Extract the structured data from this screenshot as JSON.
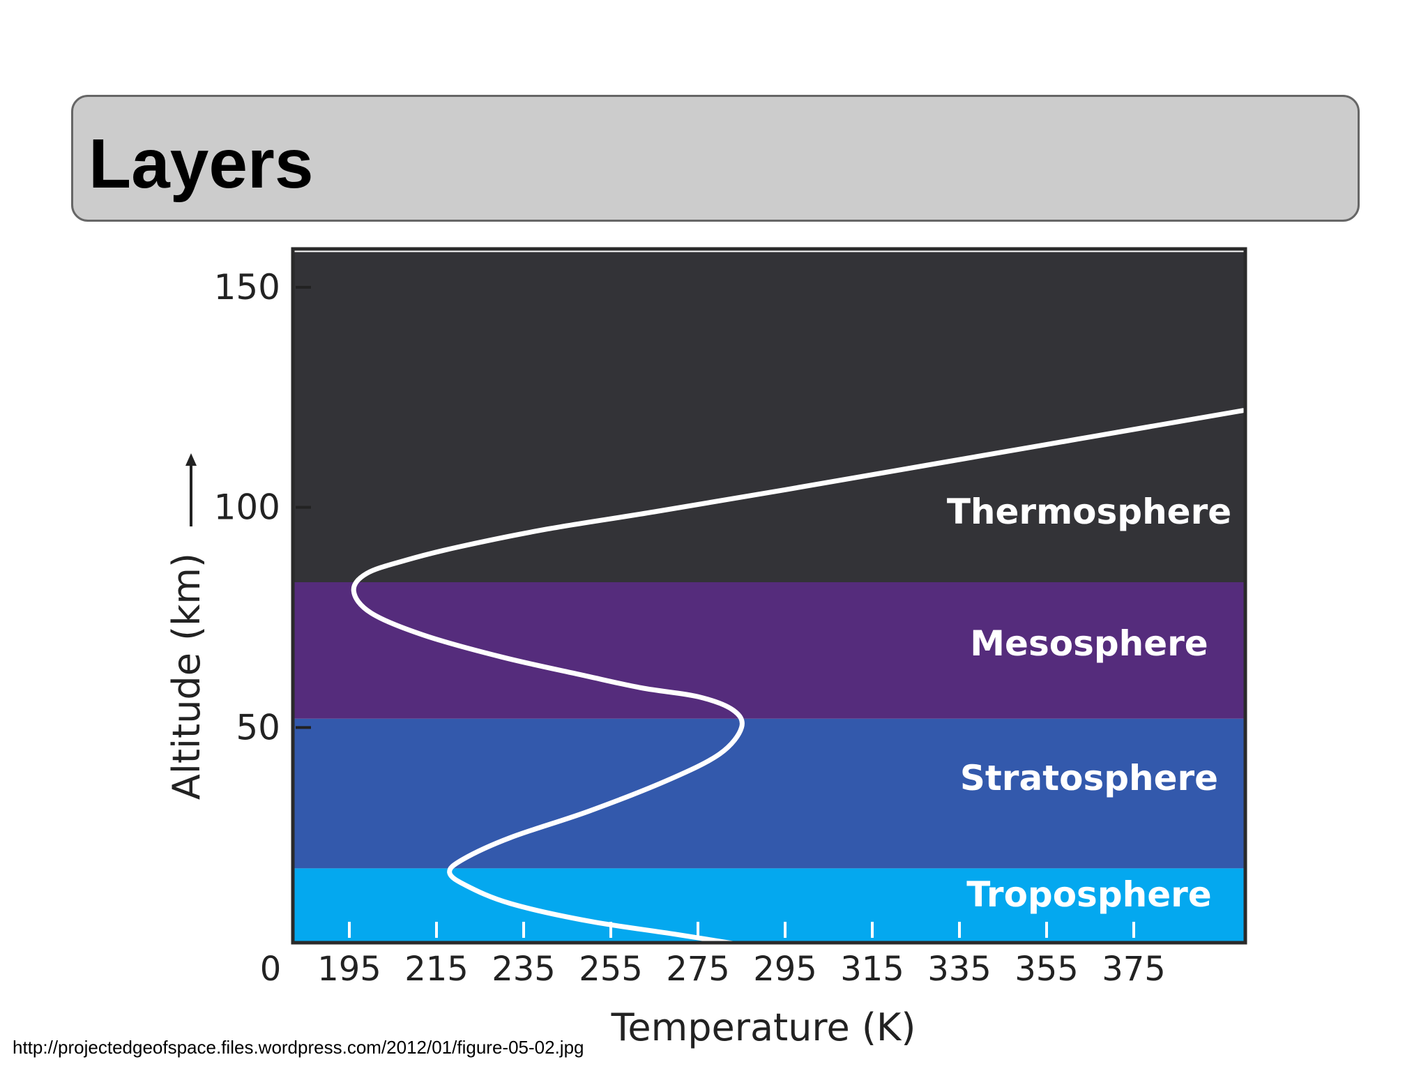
{
  "slide": {
    "title": "Layers",
    "source_caption": "http://projectedgeofspace.files.wordpress.com/2012/01/figure-05-02.jpg"
  },
  "chart_data": {
    "type": "line",
    "xlabel": "Temperature (K)",
    "ylabel": "Altitude (km)",
    "x_ticks": [
      195,
      215,
      235,
      255,
      275,
      295,
      315,
      335,
      355,
      375
    ],
    "x_origin_label": "0",
    "y_ticks": [
      50,
      100,
      150
    ],
    "ylim": [
      0,
      158
    ],
    "xlim": [
      182,
      400
    ],
    "grid": false,
    "layers": [
      {
        "name": "Troposphere",
        "bottom": 0,
        "top": 18,
        "color": "#04a8ef"
      },
      {
        "name": "Stratosphere",
        "bottom": 18,
        "top": 52,
        "color": "#3359ac"
      },
      {
        "name": "Mesosphere",
        "bottom": 52,
        "top": 83,
        "color": "#552c7c"
      },
      {
        "name": "Thermosphere",
        "bottom": 83,
        "top": 158,
        "color": "#333337"
      }
    ],
    "series": [
      {
        "x": [
          289,
          270,
          250,
          232,
          222,
          218,
          221,
          232,
          250,
          268,
          280,
          285,
          283,
          275,
          262,
          248,
          230,
          212,
          200,
          196,
          199,
          208,
          220,
          240,
          265,
          295,
          330,
          365,
          400
        ],
        "y": [
          0,
          3,
          6,
          10,
          14,
          17,
          20,
          25,
          31,
          38,
          44,
          50,
          54,
          57,
          59,
          62,
          66,
          71,
          76,
          81,
          85,
          88,
          91,
          95,
          99,
          104,
          110,
          116,
          122
        ],
        "color": "#ffffff"
      }
    ]
  }
}
